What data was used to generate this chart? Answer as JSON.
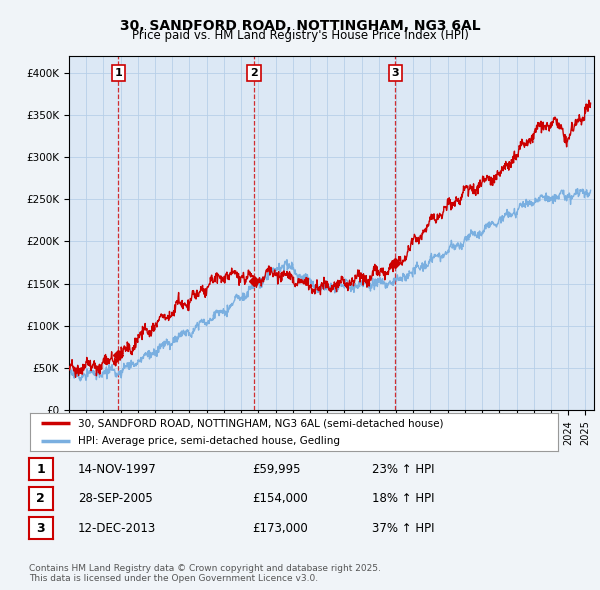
{
  "title": "30, SANDFORD ROAD, NOTTINGHAM, NG3 6AL",
  "subtitle": "Price paid vs. HM Land Registry's House Price Index (HPI)",
  "ylim": [
    0,
    420000
  ],
  "xlim_start": 1995.0,
  "xlim_end": 2025.5,
  "transactions": [
    {
      "date_label": "1",
      "year": 1997.87,
      "price": 59995
    },
    {
      "date_label": "2",
      "year": 2005.75,
      "price": 154000
    },
    {
      "date_label": "3",
      "year": 2013.95,
      "price": 173000
    }
  ],
  "legend_line1": "30, SANDFORD ROAD, NOTTINGHAM, NG3 6AL (semi-detached house)",
  "legend_line2": "HPI: Average price, semi-detached house, Gedling",
  "table_rows": [
    {
      "num": "1",
      "date": "14-NOV-1997",
      "price": "£59,995",
      "change": "23% ↑ HPI"
    },
    {
      "num": "2",
      "date": "28-SEP-2005",
      "price": "£154,000",
      "change": "18% ↑ HPI"
    },
    {
      "num": "3",
      "date": "12-DEC-2013",
      "price": "£173,000",
      "change": "37% ↑ HPI"
    }
  ],
  "footnote": "Contains HM Land Registry data © Crown copyright and database right 2025.\nThis data is licensed under the Open Government Licence v3.0.",
  "red_line_color": "#cc0000",
  "blue_line_color": "#7aafe0",
  "bg_color": "#dce8f5",
  "plot_bg_color": "#dce8f5",
  "grid_color": "#b8cfe8",
  "vline_color": "#cc0000",
  "outer_bg": "#f0f4f8"
}
